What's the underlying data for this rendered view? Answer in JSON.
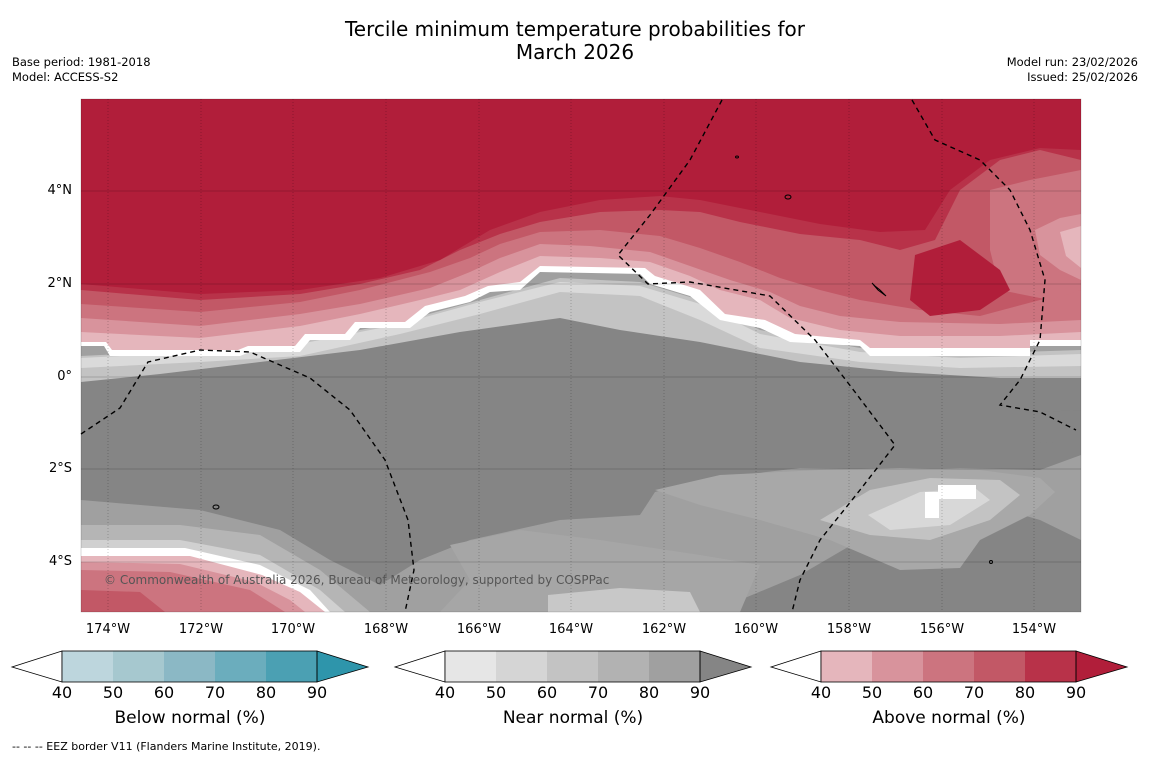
{
  "title_line1": "Tercile minimum temperature probabilities for",
  "title_line2": "March 2026",
  "base_period": "Base period: 1981-2018",
  "model": "Model: ACCESS-S2",
  "model_run": "Model run: 23/02/2026",
  "issued": "Issued: 25/02/2026",
  "copyright": "© Commonwealth of Australia 2026, Bureau of Meteorology, supported by COSPPac",
  "lat_labels": [
    "4°N",
    "2°N",
    "0°",
    "2°S",
    "4°S"
  ],
  "lon_labels": [
    "174°W",
    "172°W",
    "170°W",
    "168°W",
    "166°W",
    "164°W",
    "162°W",
    "160°W",
    "158°W",
    "156°W",
    "154°W"
  ],
  "colorbars": [
    {
      "label": "Below normal (%)",
      "ticks": [
        "40",
        "50",
        "60",
        "70",
        "80",
        "90"
      ],
      "colors": [
        "#bdd6dd",
        "#a6c8cf",
        "#8bb8c5",
        "#6badbd",
        "#4ba0b3",
        "#2e95ab"
      ]
    },
    {
      "label": "Near normal (%)",
      "ticks": [
        "40",
        "50",
        "60",
        "70",
        "80",
        "90"
      ],
      "colors": [
        "#e6e6e6",
        "#d5d5d5",
        "#c3c3c3",
        "#b2b2b2",
        "#a0a0a0",
        "#858585"
      ]
    },
    {
      "label": "Above normal (%)",
      "ticks": [
        "40",
        "50",
        "60",
        "70",
        "80",
        "90"
      ],
      "colors": [
        "#e5b6bc",
        "#d8939c",
        "#cc747f",
        "#c25866",
        "#b83249",
        "#b11e3a"
      ]
    }
  ],
  "footnote": "--  --  -- EEZ border V11 (Flanders Marine Institute, 2019)."
}
